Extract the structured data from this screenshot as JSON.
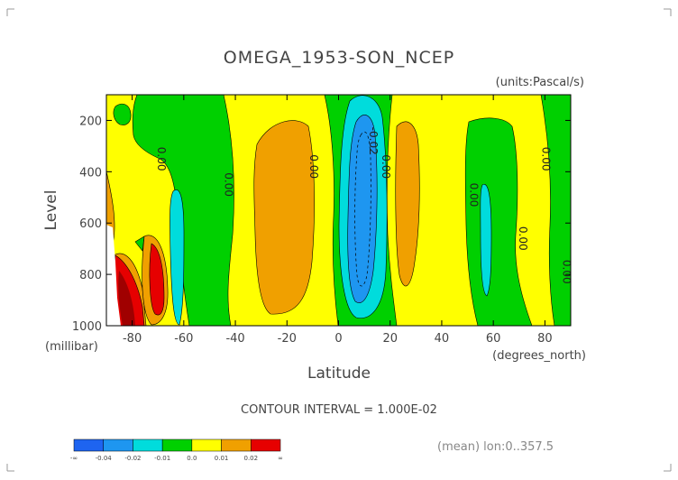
{
  "chart_data": {
    "type": "heatmap",
    "title": "OMEGA_1953-SON_NCEP",
    "units": "(units:Pascal/s)",
    "xlabel": "Latitude",
    "ylabel": "Level",
    "x_unit_label": "(degrees_north)",
    "y_unit_label": "(millibar)",
    "xlim": [
      -90,
      90
    ],
    "ylim": [
      1000,
      100
    ],
    "x_ticks": [
      {
        "value": -80,
        "label": "-80"
      },
      {
        "value": -60,
        "label": "-60"
      },
      {
        "value": -40,
        "label": "-40"
      },
      {
        "value": -20,
        "label": "-20"
      },
      {
        "value": 0,
        "label": "0"
      },
      {
        "value": 20,
        "label": "20"
      },
      {
        "value": 40,
        "label": "40"
      },
      {
        "value": 60,
        "label": "60"
      },
      {
        "value": 80,
        "label": "80"
      }
    ],
    "y_ticks": [
      {
        "value": 200,
        "label": "200"
      },
      {
        "value": 400,
        "label": "400"
      },
      {
        "value": 600,
        "label": "600"
      },
      {
        "value": 800,
        "label": "800"
      },
      {
        "value": 1000,
        "label": "1000"
      }
    ],
    "contour_interval_text": "CONTOUR INTERVAL = 1.000E-02",
    "annotation": "(mean) lon:0..357.5",
    "contour_labels": [
      {
        "text": "0.00",
        "x": -70,
        "y": 350
      },
      {
        "text": "0.00",
        "x": -44,
        "y": 450
      },
      {
        "text": "0.00",
        "x": -11,
        "y": 380
      },
      {
        "text": "-0.02",
        "x": 12,
        "y": 280
      },
      {
        "text": "0.00",
        "x": 17,
        "y": 380
      },
      {
        "text": "0.00",
        "x": 51,
        "y": 490
      },
      {
        "text": "0.00",
        "x": 70,
        "y": 660
      },
      {
        "text": "0.00",
        "x": 79,
        "y": 350
      },
      {
        "text": "0.00",
        "x": 87,
        "y": 790
      }
    ],
    "colorbar": {
      "bins": [
        {
          "color": "#1e64f0"
        },
        {
          "color": "#1e96f0"
        },
        {
          "color": "#00dcdc"
        },
        {
          "color": "#00d000"
        },
        {
          "color": "#ffff00"
        },
        {
          "color": "#f0a000"
        },
        {
          "color": "#e60000"
        }
      ],
      "labels": [
        "-∞",
        "-0.04",
        "-0.02",
        "-0.01",
        "0.0",
        "0.01",
        "0.02",
        "∞"
      ]
    }
  }
}
